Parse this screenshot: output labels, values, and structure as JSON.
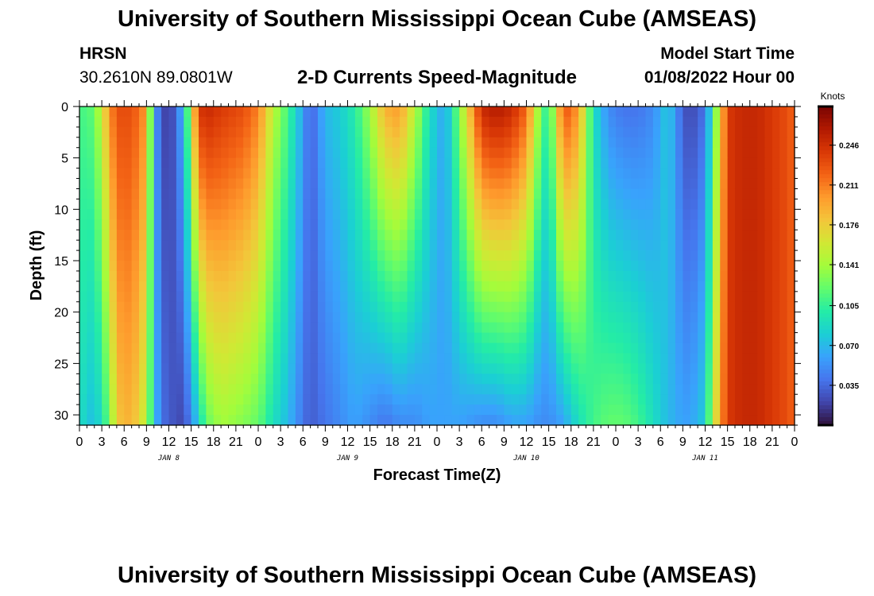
{
  "header": {
    "title": "University of Southern Mississippi Ocean Cube (AMSEAS)",
    "station_name": "HRSN",
    "station_coords": "30.2610N  89.0801W",
    "subtitle": "2-D Currents Speed-Magnitude",
    "model_start_label": "Model Start Time",
    "model_start_value": "01/08/2022 Hour 00"
  },
  "footer": {
    "title": "University of Southern Mississippi Ocean Cube (AMSEAS)"
  },
  "chart_data": {
    "type": "heatmap",
    "title": "2-D Currents Speed-Magnitude",
    "xlabel": "Forecast Time(Z)",
    "ylabel": "Depth (ft)",
    "xlim_hours": [
      0,
      96
    ],
    "ylim_ft": [
      0,
      31
    ],
    "y_ticks": [
      0,
      5,
      10,
      15,
      20,
      25,
      30
    ],
    "x_tick_labels": [
      "0",
      "3",
      "6",
      "9",
      "12",
      "15",
      "18",
      "21",
      "0",
      "3",
      "6",
      "9",
      "12",
      "15",
      "18",
      "21",
      "0",
      "3",
      "6",
      "9",
      "12",
      "15",
      "18",
      "21",
      "0",
      "3",
      "6",
      "9",
      "12",
      "15",
      "18",
      "21",
      "0"
    ],
    "day_labels": [
      {
        "label": "JAN 8",
        "hour": 12
      },
      {
        "label": "JAN 9",
        "hour": 36
      },
      {
        "label": "JAN 10",
        "hour": 60
      },
      {
        "label": "JAN 11",
        "hour": 84
      }
    ],
    "colorbar": {
      "unit": "Knots",
      "min": 0.0,
      "max": 0.28,
      "ticks": [
        "0.246",
        "0.211",
        "0.176",
        "0.141",
        "0.105",
        "0.070",
        "0.035"
      ]
    },
    "colormap": [
      "#30123b",
      "#4145ab",
      "#4675ed",
      "#39a2fc",
      "#1bcfd4",
      "#24eca6",
      "#61fc6c",
      "#a4fc3b",
      "#d1e834",
      "#f3c63a",
      "#fe9b2d",
      "#f36315",
      "#d93806",
      "#b11901",
      "#7a0402"
    ],
    "time_profile_hours": [
      0,
      2,
      4,
      5,
      7,
      9,
      10,
      11,
      12,
      14,
      16,
      17,
      19,
      22,
      24,
      26,
      28,
      30,
      31,
      33,
      35,
      37,
      39,
      41,
      43,
      45,
      47,
      49,
      51,
      54,
      56,
      58,
      60,
      62,
      63,
      65,
      67,
      69,
      71,
      73,
      75,
      77,
      79,
      81,
      82,
      84,
      85,
      87,
      89,
      91,
      93,
      95,
      96
    ],
    "speed_surface_knots": [
      0.11,
      0.12,
      0.2,
      0.23,
      0.23,
      0.2,
      0.06,
      0.03,
      0.01,
      0.07,
      0.24,
      0.25,
      0.24,
      0.23,
      0.21,
      0.15,
      0.11,
      0.06,
      0.03,
      0.07,
      0.08,
      0.1,
      0.14,
      0.19,
      0.2,
      0.15,
      0.09,
      0.06,
      0.13,
      0.25,
      0.26,
      0.25,
      0.22,
      0.12,
      0.1,
      0.23,
      0.2,
      0.09,
      0.05,
      0.04,
      0.04,
      0.05,
      0.08,
      0.03,
      0.02,
      0.04,
      0.1,
      0.24,
      0.25,
      0.25,
      0.24,
      0.23,
      0.22
    ],
    "speed_bottom_knots": [
      0.09,
      0.07,
      0.12,
      0.18,
      0.19,
      0.15,
      0.08,
      0.04,
      0.03,
      0.02,
      0.08,
      0.12,
      0.14,
      0.13,
      0.12,
      0.09,
      0.07,
      0.04,
      0.03,
      0.04,
      0.05,
      0.06,
      0.05,
      0.04,
      0.05,
      0.05,
      0.06,
      0.06,
      0.06,
      0.05,
      0.05,
      0.06,
      0.06,
      0.05,
      0.05,
      0.06,
      0.09,
      0.11,
      0.12,
      0.12,
      0.11,
      0.09,
      0.07,
      0.06,
      0.06,
      0.08,
      0.15,
      0.24,
      0.25,
      0.25,
      0.24,
      0.23,
      0.22
    ]
  }
}
